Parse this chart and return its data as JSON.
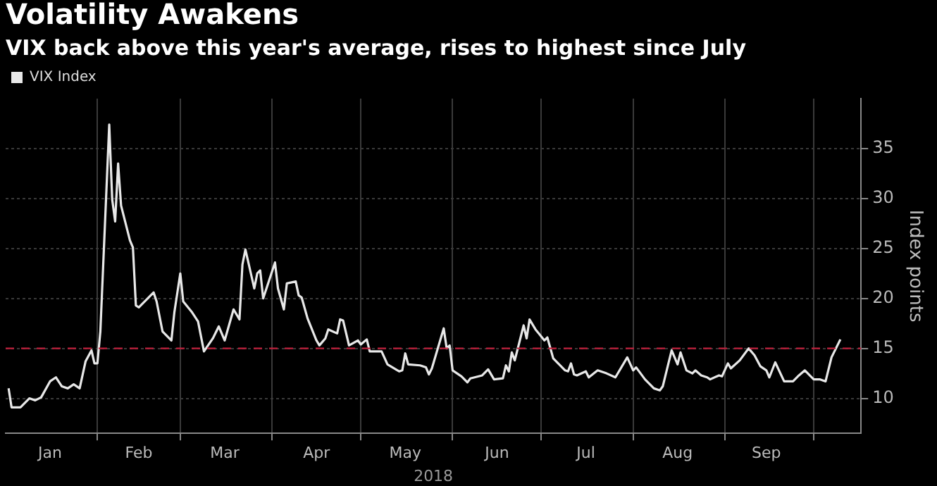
{
  "chart_data": {
    "type": "line",
    "title": "Volatility Awakens",
    "subtitle": "VIX back above this year's average, rises to highest since July",
    "xlabel": "2018",
    "ylabel": "Index points",
    "x": [
      "2018-01-02",
      "2018-01-03",
      "2018-01-06",
      "2018-01-09",
      "2018-01-11",
      "2018-01-13",
      "2018-01-16",
      "2018-01-18",
      "2018-01-20",
      "2018-01-22",
      "2018-01-24",
      "2018-01-26",
      "2018-01-28",
      "2018-01-30",
      "2018-01-31",
      "2018-02-01",
      "2018-02-02",
      "2018-02-05",
      "2018-02-06",
      "2018-02-07",
      "2018-02-08",
      "2018-02-09",
      "2018-02-12",
      "2018-02-13",
      "2018-02-14",
      "2018-02-15",
      "2018-02-20",
      "2018-02-21",
      "2018-02-23",
      "2018-02-26",
      "2018-02-27",
      "2018-03-01",
      "2018-03-02",
      "2018-03-05",
      "2018-03-07",
      "2018-03-09",
      "2018-03-12",
      "2018-03-14",
      "2018-03-16",
      "2018-03-19",
      "2018-03-21",
      "2018-03-22",
      "2018-03-23",
      "2018-03-26",
      "2018-03-27",
      "2018-03-28",
      "2018-03-29",
      "2018-04-02",
      "2018-04-03",
      "2018-04-05",
      "2018-04-06",
      "2018-04-09",
      "2018-04-10",
      "2018-04-11",
      "2018-04-13",
      "2018-04-16",
      "2018-04-17",
      "2018-04-19",
      "2018-04-20",
      "2018-04-23",
      "2018-04-24",
      "2018-04-25",
      "2018-04-27",
      "2018-04-30",
      "2018-05-01",
      "2018-05-03",
      "2018-05-04",
      "2018-05-08",
      "2018-05-10",
      "2018-05-14",
      "2018-05-15",
      "2018-05-16",
      "2018-05-17",
      "2018-05-21",
      "2018-05-23",
      "2018-05-24",
      "2018-05-25",
      "2018-05-29",
      "2018-05-30",
      "2018-05-31",
      "2018-06-01",
      "2018-06-04",
      "2018-06-06",
      "2018-06-07",
      "2018-06-11",
      "2018-06-13",
      "2018-06-15",
      "2018-06-18",
      "2018-06-19",
      "2018-06-20",
      "2018-06-21",
      "2018-06-22",
      "2018-06-25",
      "2018-06-26",
      "2018-06-27",
      "2018-06-29",
      "2018-07-02",
      "2018-07-03",
      "2018-07-05",
      "2018-07-09",
      "2018-07-10",
      "2018-07-11",
      "2018-07-12",
      "2018-07-13",
      "2018-07-16",
      "2018-07-17",
      "2018-07-20",
      "2018-07-23",
      "2018-07-26",
      "2018-07-30",
      "2018-08-01",
      "2018-08-02",
      "2018-08-05",
      "2018-08-08",
      "2018-08-10",
      "2018-08-11",
      "2018-08-13",
      "2018-08-14",
      "2018-08-16",
      "2018-08-17",
      "2018-08-19",
      "2018-08-21",
      "2018-08-22",
      "2018-08-24",
      "2018-08-26",
      "2018-08-27",
      "2018-08-30",
      "2018-08-31",
      "2018-09-02",
      "2018-09-03",
      "2018-09-06",
      "2018-09-09",
      "2018-09-11",
      "2018-09-13",
      "2018-09-15",
      "2018-09-16",
      "2018-09-18",
      "2018-09-21",
      "2018-09-24",
      "2018-09-26",
      "2018-09-28",
      "2018-10-01",
      "2018-10-03",
      "2018-10-05",
      "2018-10-07",
      "2018-10-08",
      "2018-10-09",
      "2018-10-10"
    ],
    "series": [
      {
        "name": "VIX Index",
        "color": "#e8e8e8",
        "values": [
          11.0,
          9.1,
          9.1,
          10.0,
          9.8,
          10.1,
          11.7,
          12.1,
          11.2,
          11.0,
          11.4,
          11.0,
          13.7,
          14.8,
          13.5,
          13.5,
          16.7,
          37.4,
          29.9,
          27.7,
          33.5,
          29.3,
          25.8,
          25.1,
          19.3,
          19.1,
          20.6,
          19.7,
          16.7,
          15.8,
          18.6,
          22.5,
          19.7,
          18.6,
          17.7,
          14.7,
          16.0,
          17.2,
          15.8,
          18.9,
          17.9,
          23.4,
          24.9,
          21.0,
          22.5,
          22.8,
          20.0,
          23.6,
          21.0,
          18.9,
          21.5,
          21.7,
          20.3,
          20.1,
          18.0,
          15.8,
          15.3,
          16.0,
          16.9,
          16.5,
          17.9,
          17.8,
          15.3,
          15.8,
          15.4,
          15.9,
          14.7,
          14.7,
          13.4,
          12.7,
          12.8,
          14.5,
          13.4,
          13.3,
          13.1,
          12.4,
          13.0,
          17.0,
          15.0,
          15.3,
          12.8,
          12.2,
          11.6,
          12.0,
          12.3,
          12.9,
          11.9,
          12.0,
          13.3,
          12.7,
          14.6,
          13.8,
          17.3,
          16.0,
          17.9,
          16.9,
          15.8,
          16.1,
          14.0,
          12.8,
          12.7,
          13.5,
          12.4,
          12.3,
          12.7,
          12.1,
          12.8,
          12.5,
          12.1,
          14.1,
          12.8,
          13.1,
          11.9,
          11.0,
          10.8,
          11.2,
          13.6,
          14.8,
          13.4,
          14.6,
          12.8,
          12.5,
          12.8,
          12.3,
          12.1,
          11.9,
          12.3,
          12.2,
          13.5,
          13.0,
          13.8,
          15.0,
          14.3,
          13.2,
          12.8,
          12.1,
          13.6,
          11.7,
          11.7,
          12.3,
          12.8,
          11.9,
          11.9,
          11.7,
          14.1,
          14.7,
          15.3,
          15.9
        ]
      }
    ],
    "xlim": [
      "2018-01-01",
      "2018-10-17"
    ],
    "xticks": [
      {
        "value": "2018-01-16",
        "label": "Jan"
      },
      {
        "value": "2018-02-01",
        "label": null
      },
      {
        "value": "2018-02-15",
        "label": "Feb"
      },
      {
        "value": "2018-03-01",
        "label": null
      },
      {
        "value": "2018-03-16",
        "label": "Mar"
      },
      {
        "value": "2018-04-01",
        "label": null
      },
      {
        "value": "2018-04-16",
        "label": "Apr"
      },
      {
        "value": "2018-05-01",
        "label": null
      },
      {
        "value": "2018-05-16",
        "label": "May"
      },
      {
        "value": "2018-06-01",
        "label": null
      },
      {
        "value": "2018-06-16",
        "label": "Jun"
      },
      {
        "value": "2018-07-01",
        "label": null
      },
      {
        "value": "2018-07-16",
        "label": "Jul"
      },
      {
        "value": "2018-08-01",
        "label": null
      },
      {
        "value": "2018-08-16",
        "label": "Aug"
      },
      {
        "value": "2018-09-01",
        "label": null
      },
      {
        "value": "2018-09-15",
        "label": "Sep"
      },
      {
        "value": "2018-10-01",
        "label": null
      }
    ],
    "ylim": [
      6.5,
      40
    ],
    "yticks": [
      10,
      15,
      20,
      25,
      30,
      35
    ],
    "ref_lines": [
      {
        "axis": "y",
        "value": 15,
        "color": "#c0203c",
        "line_style": "dashed"
      }
    ],
    "grid": true,
    "legend": "top left",
    "marker": "none",
    "line_style": "solid"
  }
}
